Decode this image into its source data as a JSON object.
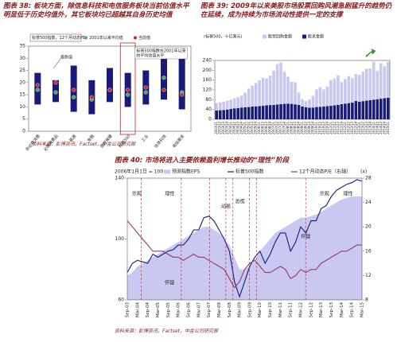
{
  "chart_data": [
    {
      "type": "range",
      "title": "图表 38: 板块方面，除信息科技和电信服务板块当前估值水平明显低于历史均值外，其它板块均已超越其自身历史均值",
      "legend_title": "标普500指数，12个月动态PE",
      "categories": [
        "非必需消费",
        "必需消费品",
        "能源",
        "金融",
        "医疗保健",
        "标普500",
        "工业",
        "信息科技",
        "电信服务"
      ],
      "low": [
        11,
        12,
        8,
        7,
        12,
        10,
        11,
        13,
        9
      ],
      "high": [
        24,
        21,
        27,
        21,
        26,
        24,
        25,
        34,
        30
      ],
      "range_color": "#1a1a7a",
      "series": [
        {
          "name": "2001年以来平均值",
          "color": "#3cb44b",
          "values": [
            17,
            16,
            14,
            13,
            17,
            15,
            16,
            22,
            16
          ]
        },
        {
          "name": "当前值",
          "color": "#e02020",
          "values": [
            19,
            20,
            17,
            14,
            17,
            17,
            18,
            17,
            15
          ]
        }
      ],
      "annotations": [
        "最新值",
        "标普500指数在2001年以来",
        "的平均估值水平"
      ],
      "ylim": [
        0,
        35
      ],
      "yticks": [
        0,
        5,
        10,
        15,
        20,
        25,
        30,
        35
      ],
      "source": "资料来源：彭博资讯，Factset，中金公司研究部"
    },
    {
      "type": "bar",
      "stacked": true,
      "title": "图表 39: 2009年以来美股市场股票回购风潮急剧猛升的趋势仍在延续，成为持续为市场流动性提供一定的支撑",
      "subtitle": "(标普500，十亿美元)",
      "categories": [
        "2003Q1",
        "2003Q2",
        "2003Q3",
        "2003Q4",
        "2004Q1",
        "2004Q2",
        "2004Q3",
        "2004Q4",
        "2005Q1",
        "2005Q2",
        "2005Q3",
        "2005Q4",
        "2006Q1",
        "2006Q2",
        "2006Q3",
        "2006Q4",
        "2007Q1",
        "2007Q2",
        "2007Q3",
        "2007Q4",
        "2008Q1",
        "2008Q2",
        "2008Q3",
        "2008Q4",
        "2009Q1",
        "2009Q2",
        "2009Q3",
        "2009Q4",
        "2010Q1",
        "2010Q2",
        "2010Q3",
        "2010Q4",
        "2011Q1",
        "2011Q2",
        "2011Q3",
        "2011Q4",
        "2012Q1",
        "2012Q2",
        "2012Q3",
        "2012Q4",
        "2013Q1",
        "2013Q2",
        "2013Q3",
        "2013Q4",
        "2014Q1",
        "2014Q2",
        "2014Q3",
        "2014Q4",
        "2015Q1"
      ],
      "series": [
        {
          "name": "股息金额",
          "color": "#1a1a7a",
          "values": [
            36,
            37,
            38,
            40,
            42,
            44,
            46,
            48,
            49,
            50,
            52,
            53,
            54,
            55,
            57,
            58,
            59,
            60,
            62,
            63,
            64,
            63,
            61,
            59,
            52,
            49,
            47,
            48,
            50,
            51,
            52,
            54,
            55,
            57,
            59,
            62,
            64,
            66,
            68,
            75,
            72,
            74,
            76,
            78,
            80,
            82,
            84,
            86,
            88
          ]
        },
        {
          "name": "股票回购金额",
          "color": "#c8c8f0",
          "values": [
            30,
            32,
            34,
            36,
            38,
            42,
            45,
            48,
            60,
            75,
            85,
            95,
            105,
            115,
            110,
            120,
            140,
            165,
            170,
            130,
            110,
            90,
            90,
            50,
            30,
            25,
            34,
            48,
            72,
            80,
            70,
            80,
            105,
            110,
            120,
            90,
            100,
            110,
            100,
            110,
            110,
            120,
            130,
            130,
            155,
            115,
            145,
            130,
            145
          ]
        }
      ],
      "ylim": [
        0,
        240
      ],
      "yticks": [
        0,
        40,
        80,
        120,
        160,
        200,
        240
      ]
    },
    {
      "type": "line",
      "title": "图表 40: 市场将进入主要依赖盈利增长推动的“理性”阶段",
      "ylabel": "2006年1月1日 = 100",
      "y2label": "(x)",
      "categories": [
        "Sep-03",
        null,
        "Mar-04",
        null,
        "Sep-04",
        null,
        "Mar-05",
        null,
        "Sep-05",
        null,
        "Mar-06",
        null,
        "Sep-06",
        null,
        "Mar-07",
        null,
        "Sep-07",
        null,
        "Mar-08",
        null,
        "Sep-08",
        null,
        "Mar-09",
        null,
        "Sep-09",
        null,
        "Mar-10",
        null,
        "Sep-10",
        null,
        "Mar-11",
        null,
        "Sep-11",
        null,
        "Mar-12",
        null,
        "Sep-12",
        null,
        "Mar-13",
        null,
        "Sep-13",
        null,
        "Mar-14",
        null,
        "Sep-14",
        null,
        "Mar-15"
      ],
      "series": [
        {
          "name": "预测指数EPS",
          "kind": "area",
          "color": "#c8c8f0",
          "values": [
            76,
            78,
            82,
            84,
            86,
            88,
            90,
            92,
            94,
            96,
            98,
            100,
            102,
            104,
            106,
            108,
            108,
            106,
            104,
            100,
            96,
            88,
            80,
            80,
            82,
            86,
            92,
            96,
            100,
            104,
            106,
            108,
            110,
            112,
            114,
            114,
            115,
            116,
            118,
            120,
            122,
            124,
            126,
            127,
            128,
            128,
            128
          ]
        },
        {
          "name": "标普500指数",
          "color": "#1a1a7a",
          "values": [
            78,
            84,
            86,
            85,
            84,
            90,
            88,
            90,
            92,
            93,
            96,
            96,
            100,
            106,
            106,
            114,
            115,
            112,
            106,
            100,
            92,
            72,
            62,
            72,
            82,
            88,
            92,
            84,
            90,
            98,
            104,
            104,
            92,
            98,
            108,
            104,
            112,
            112,
            120,
            122,
            128,
            132,
            134,
            136,
            137,
            139,
            138
          ]
        },
        {
          "name": "12个月动态P/E（右轴）",
          "axis": "y2",
          "color": "#9a3a6a",
          "values": [
            21,
            20,
            19,
            18,
            17,
            16,
            16,
            16,
            15.5,
            15,
            15,
            14.5,
            15,
            15.5,
            15,
            15,
            14.5,
            14,
            13.5,
            13,
            11.5,
            10,
            11,
            13,
            14,
            14.5,
            13.5,
            12.5,
            12.5,
            13,
            13.5,
            13,
            11.5,
            12,
            13,
            12.5,
            13,
            13,
            14,
            14.5,
            15,
            15.5,
            16,
            16,
            16.5,
            17,
            17
          ]
        }
      ],
      "annotations": [
        "乐观",
        "理性",
        "动摇",
        "恐慌",
        "怀疑",
        "怀疑",
        "乐观",
        "理性"
      ],
      "ylim": [
        60,
        140
      ],
      "yticks": [
        60,
        100,
        140
      ],
      "y2lim": [
        8,
        28
      ],
      "y2ticks": [
        8,
        12,
        16,
        20,
        24,
        28
      ],
      "source": "资料来源：彭博资讯，Factset，中金公司研究部"
    }
  ]
}
